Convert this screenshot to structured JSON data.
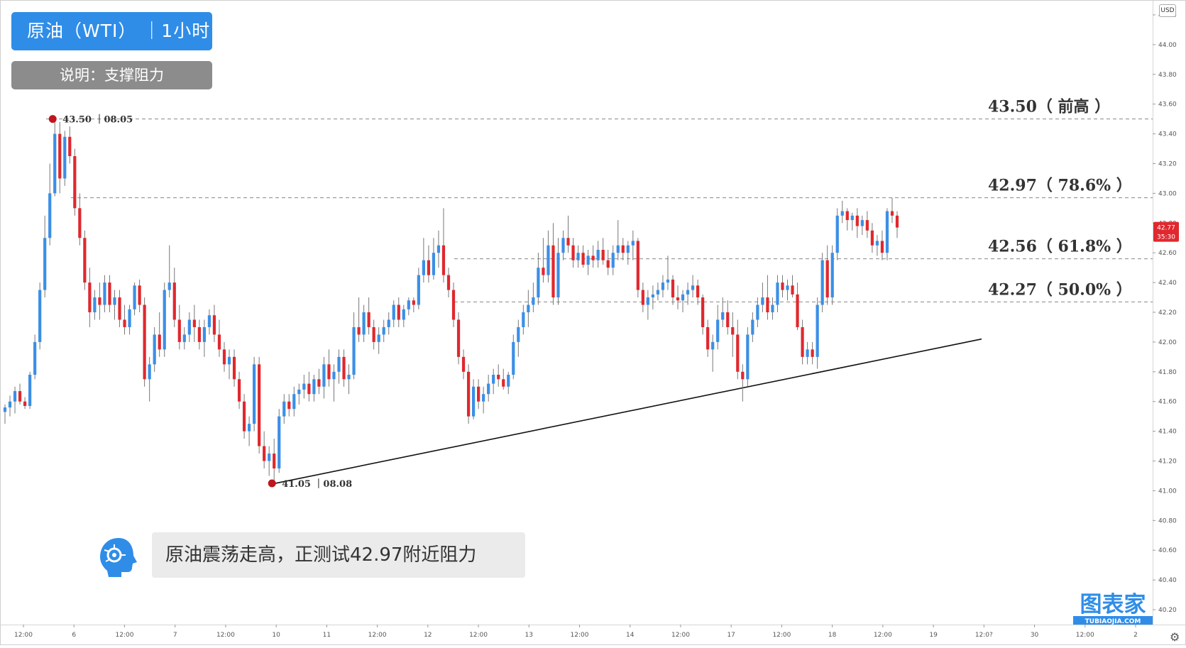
{
  "header": {
    "title": "原油（WTI）  ｜1小时",
    "note": "说明：支撑阻力"
  },
  "comment": "原油震荡走高，正测试42.97附近阻力",
  "currency": "USD",
  "brand": {
    "name": "图表家",
    "sub": "TUBIAOJIA.COM"
  },
  "price_tag": {
    "price": "42.77",
    "countdown": "35:30",
    "color": "#e0282e"
  },
  "colors": {
    "up": "#3b8fe6",
    "down": "#e0282e",
    "accent": "#2f8de8"
  },
  "chart_data": {
    "type": "candlestick",
    "ylim": [
      40.1,
      44.3
    ],
    "y_ticks": [
      "44.20",
      "44.00",
      "43.80",
      "43.60",
      "43.40",
      "43.20",
      "43.00",
      "42.80",
      "42.60",
      "42.40",
      "42.20",
      "42.00",
      "41.80",
      "41.60",
      "41.40",
      "41.20",
      "41.00",
      "40.80",
      "40.60",
      "40.40",
      "40.20"
    ],
    "x_ticks": [
      "12:00",
      "6",
      "12:00",
      "7",
      "12:00",
      "10",
      "11",
      "12:00",
      "12",
      "12:00",
      "13",
      "12:00",
      "14",
      "12:00",
      "17",
      "12:00",
      "18",
      "12:00",
      "19",
      "12:0?",
      "30",
      "12:00",
      "2"
    ],
    "levels": [
      {
        "value": 43.5,
        "label": "43.50（ 前高 ）"
      },
      {
        "value": 42.97,
        "label": "42.97（ 78.6% ）"
      },
      {
        "value": 42.56,
        "label": "42.56（ 61.8% ）"
      },
      {
        "value": 42.27,
        "label": "42.27（ 50.0% ）"
      }
    ],
    "annotations": [
      {
        "price": 43.5,
        "text": "43.50 ｜08.05"
      },
      {
        "price": 41.05,
        "text": "41.05 ｜08.08"
      }
    ],
    "trendline": {
      "from_price": 41.05,
      "to_price": 42.02
    },
    "ohlc": [
      [
        41.53,
        41.58,
        41.45,
        41.56
      ],
      [
        41.56,
        41.64,
        41.5,
        41.6
      ],
      [
        41.6,
        41.7,
        41.52,
        41.67
      ],
      [
        41.67,
        41.72,
        41.58,
        41.6
      ],
      [
        41.6,
        41.63,
        41.55,
        41.57
      ],
      [
        41.57,
        41.8,
        41.55,
        41.78
      ],
      [
        41.78,
        42.05,
        41.75,
        42.0
      ],
      [
        42.0,
        42.4,
        41.95,
        42.35
      ],
      [
        42.35,
        42.85,
        42.3,
        42.7
      ],
      [
        42.7,
        43.2,
        42.65,
        43.0
      ],
      [
        43.0,
        43.5,
        42.98,
        43.4
      ],
      [
        43.4,
        43.48,
        43.0,
        43.1
      ],
      [
        43.1,
        43.42,
        43.05,
        43.38
      ],
      [
        43.38,
        43.45,
        43.2,
        43.25
      ],
      [
        43.25,
        43.3,
        42.85,
        42.9
      ],
      [
        42.9,
        43.0,
        42.65,
        42.7
      ],
      [
        42.7,
        42.75,
        42.35,
        42.4
      ],
      [
        42.4,
        42.5,
        42.1,
        42.2
      ],
      [
        42.2,
        42.35,
        42.15,
        42.3
      ],
      [
        42.3,
        42.4,
        42.15,
        42.25
      ],
      [
        42.25,
        42.45,
        42.2,
        42.4
      ],
      [
        42.4,
        42.45,
        42.2,
        42.25
      ],
      [
        42.25,
        42.35,
        42.15,
        42.3
      ],
      [
        42.3,
        42.35,
        42.1,
        42.15
      ],
      [
        42.15,
        42.25,
        42.05,
        42.1
      ],
      [
        42.1,
        42.25,
        42.05,
        42.22
      ],
      [
        42.22,
        42.4,
        42.18,
        42.38
      ],
      [
        42.38,
        42.42,
        42.2,
        42.25
      ],
      [
        42.25,
        42.3,
        41.7,
        41.75
      ],
      [
        41.75,
        41.9,
        41.6,
        41.85
      ],
      [
        41.85,
        42.1,
        41.8,
        42.05
      ],
      [
        42.05,
        42.2,
        41.9,
        41.95
      ],
      [
        41.95,
        42.4,
        41.9,
        42.35
      ],
      [
        42.35,
        42.65,
        42.3,
        42.4
      ],
      [
        42.4,
        42.5,
        42.1,
        42.15
      ],
      [
        42.15,
        42.25,
        41.95,
        42.0
      ],
      [
        42.0,
        42.1,
        41.95,
        42.05
      ],
      [
        42.05,
        42.2,
        42.0,
        42.15
      ],
      [
        42.15,
        42.25,
        42.0,
        42.1
      ],
      [
        42.1,
        42.15,
        41.95,
        42.0
      ],
      [
        42.0,
        42.15,
        41.9,
        42.1
      ],
      [
        42.1,
        42.22,
        42.05,
        42.18
      ],
      [
        42.18,
        42.25,
        42.0,
        42.05
      ],
      [
        42.05,
        42.15,
        41.9,
        41.95
      ],
      [
        41.95,
        42.0,
        41.8,
        41.85
      ],
      [
        41.85,
        41.95,
        41.75,
        41.9
      ],
      [
        41.9,
        41.95,
        41.7,
        41.75
      ],
      [
        41.75,
        41.8,
        41.55,
        41.6
      ],
      [
        41.6,
        41.65,
        41.35,
        41.4
      ],
      [
        41.4,
        41.5,
        41.3,
        41.45
      ],
      [
        41.45,
        41.9,
        41.4,
        41.85
      ],
      [
        41.85,
        41.9,
        41.25,
        41.3
      ],
      [
        41.3,
        41.4,
        41.15,
        41.2
      ],
      [
        41.2,
        41.3,
        41.1,
        41.25
      ],
      [
        41.25,
        41.35,
        41.05,
        41.15
      ],
      [
        41.15,
        41.55,
        41.12,
        41.5
      ],
      [
        41.5,
        41.65,
        41.45,
        41.6
      ],
      [
        41.6,
        41.65,
        41.5,
        41.55
      ],
      [
        41.55,
        41.7,
        41.5,
        41.65
      ],
      [
        41.65,
        41.72,
        41.58,
        41.68
      ],
      [
        41.68,
        41.78,
        41.62,
        41.72
      ],
      [
        41.72,
        41.8,
        41.6,
        41.65
      ],
      [
        41.65,
        41.78,
        41.6,
        41.75
      ],
      [
        41.75,
        41.82,
        41.65,
        41.7
      ],
      [
        41.7,
        41.9,
        41.62,
        41.85
      ],
      [
        41.85,
        41.95,
        41.7,
        41.75
      ],
      [
        41.75,
        41.85,
        41.6,
        41.8
      ],
      [
        41.8,
        41.95,
        41.72,
        41.9
      ],
      [
        41.9,
        41.95,
        41.7,
        41.75
      ],
      [
        41.75,
        41.85,
        41.65,
        41.78
      ],
      [
        41.78,
        42.2,
        41.75,
        42.1
      ],
      [
        42.1,
        42.3,
        42.0,
        42.05
      ],
      [
        42.05,
        42.25,
        42.0,
        42.2
      ],
      [
        42.2,
        42.3,
        42.05,
        42.1
      ],
      [
        42.1,
        42.15,
        41.95,
        42.0
      ],
      [
        42.0,
        42.1,
        41.92,
        42.05
      ],
      [
        42.05,
        42.15,
        42.0,
        42.1
      ],
      [
        42.1,
        42.2,
        42.05,
        42.15
      ],
      [
        42.15,
        42.28,
        42.1,
        42.25
      ],
      [
        42.25,
        42.3,
        42.1,
        42.15
      ],
      [
        42.15,
        42.25,
        42.1,
        42.22
      ],
      [
        42.22,
        42.3,
        42.18,
        42.28
      ],
      [
        42.28,
        42.3,
        42.2,
        42.25
      ],
      [
        42.25,
        42.5,
        42.22,
        42.45
      ],
      [
        42.45,
        42.7,
        42.4,
        42.55
      ],
      [
        42.55,
        42.65,
        42.4,
        42.45
      ],
      [
        42.45,
        42.7,
        42.42,
        42.6
      ],
      [
        42.6,
        42.75,
        42.5,
        42.65
      ],
      [
        42.65,
        42.9,
        42.4,
        42.45
      ],
      [
        42.45,
        42.5,
        42.3,
        42.35
      ],
      [
        42.35,
        42.4,
        42.1,
        42.15
      ],
      [
        42.15,
        42.2,
        41.85,
        41.9
      ],
      [
        41.9,
        41.95,
        41.75,
        41.8
      ],
      [
        41.8,
        41.85,
        41.45,
        41.5
      ],
      [
        41.5,
        41.75,
        41.48,
        41.7
      ],
      [
        41.7,
        41.75,
        41.55,
        41.6
      ],
      [
        41.6,
        41.7,
        41.52,
        41.65
      ],
      [
        41.65,
        41.78,
        41.6,
        41.72
      ],
      [
        41.72,
        41.82,
        41.65,
        41.78
      ],
      [
        41.78,
        41.85,
        41.7,
        41.75
      ],
      [
        41.75,
        41.82,
        41.68,
        41.7
      ],
      [
        41.7,
        41.8,
        41.65,
        41.78
      ],
      [
        41.78,
        42.05,
        41.75,
        42.0
      ],
      [
        42.0,
        42.15,
        41.9,
        42.1
      ],
      [
        42.1,
        42.25,
        42.05,
        42.2
      ],
      [
        42.2,
        42.35,
        42.1,
        42.25
      ],
      [
        42.25,
        42.4,
        42.2,
        42.3
      ],
      [
        42.3,
        42.6,
        42.25,
        42.5
      ],
      [
        42.5,
        42.7,
        42.4,
        42.45
      ],
      [
        42.45,
        42.75,
        42.4,
        42.65
      ],
      [
        42.65,
        42.8,
        42.25,
        42.3
      ],
      [
        42.3,
        42.7,
        42.25,
        42.6
      ],
      [
        42.6,
        42.75,
        42.55,
        42.7
      ],
      [
        42.7,
        42.85,
        42.6,
        42.65
      ],
      [
        42.65,
        42.7,
        42.5,
        42.55
      ],
      [
        42.55,
        42.65,
        42.5,
        42.6
      ],
      [
        42.6,
        42.65,
        42.5,
        42.52
      ],
      [
        42.52,
        42.62,
        42.45,
        42.58
      ],
      [
        42.58,
        42.65,
        42.5,
        42.55
      ],
      [
        42.55,
        42.68,
        42.5,
        42.62
      ],
      [
        42.62,
        42.7,
        42.52,
        42.55
      ],
      [
        42.55,
        42.62,
        42.45,
        42.5
      ],
      [
        42.5,
        42.65,
        42.45,
        42.6
      ],
      [
        42.6,
        42.82,
        42.55,
        42.65
      ],
      [
        42.65,
        42.7,
        42.55,
        42.6
      ],
      [
        42.6,
        42.68,
        42.52,
        42.65
      ],
      [
        42.65,
        42.75,
        42.55,
        42.68
      ],
      [
        42.68,
        42.7,
        42.3,
        42.35
      ],
      [
        42.35,
        42.4,
        42.2,
        42.25
      ],
      [
        42.25,
        42.35,
        42.15,
        42.3
      ],
      [
        42.3,
        42.38,
        42.22,
        42.32
      ],
      [
        42.32,
        42.4,
        42.28,
        42.35
      ],
      [
        42.35,
        42.45,
        42.3,
        42.4
      ],
      [
        42.4,
        42.58,
        42.35,
        42.42
      ],
      [
        42.42,
        42.45,
        42.25,
        42.3
      ],
      [
        42.3,
        42.38,
        42.22,
        42.28
      ],
      [
        42.28,
        42.35,
        42.2,
        42.32
      ],
      [
        42.32,
        42.4,
        42.25,
        42.35
      ],
      [
        42.35,
        42.45,
        42.3,
        42.38
      ],
      [
        42.38,
        42.42,
        42.25,
        42.3
      ],
      [
        42.3,
        42.32,
        42.05,
        42.1
      ],
      [
        42.1,
        42.15,
        41.9,
        41.95
      ],
      [
        41.95,
        42.05,
        41.8,
        42.0
      ],
      [
        42.0,
        42.25,
        41.95,
        42.15
      ],
      [
        42.15,
        42.3,
        42.1,
        42.2
      ],
      [
        42.2,
        42.28,
        42.05,
        42.1
      ],
      [
        42.1,
        42.2,
        41.9,
        42.05
      ],
      [
        42.05,
        42.15,
        41.75,
        41.8
      ],
      [
        41.8,
        41.85,
        41.6,
        41.75
      ],
      [
        41.75,
        42.1,
        41.7,
        42.05
      ],
      [
        42.05,
        42.2,
        42.0,
        42.15
      ],
      [
        42.15,
        42.3,
        42.1,
        42.25
      ],
      [
        42.25,
        42.4,
        42.2,
        42.3
      ],
      [
        42.3,
        42.45,
        42.15,
        42.2
      ],
      [
        42.2,
        42.3,
        42.15,
        42.25
      ],
      [
        42.25,
        42.45,
        42.2,
        42.4
      ],
      [
        42.4,
        42.45,
        42.3,
        42.35
      ],
      [
        42.35,
        42.42,
        42.28,
        42.38
      ],
      [
        42.38,
        42.45,
        42.3,
        42.32
      ],
      [
        42.32,
        42.4,
        42.08,
        42.1
      ],
      [
        42.1,
        42.15,
        41.85,
        41.9
      ],
      [
        41.9,
        42.0,
        41.85,
        41.95
      ],
      [
        41.95,
        42.0,
        41.85,
        41.9
      ],
      [
        41.9,
        42.3,
        41.82,
        42.25
      ],
      [
        42.25,
        42.6,
        42.2,
        42.55
      ],
      [
        42.55,
        42.65,
        42.25,
        42.3
      ],
      [
        42.3,
        42.65,
        42.25,
        42.6
      ],
      [
        42.6,
        42.9,
        42.55,
        42.85
      ],
      [
        42.85,
        42.95,
        42.8,
        42.88
      ],
      [
        42.88,
        42.9,
        42.75,
        42.82
      ],
      [
        42.82,
        42.87,
        42.75,
        42.85
      ],
      [
        42.85,
        42.9,
        42.7,
        42.78
      ],
      [
        42.78,
        42.85,
        42.72,
        42.82
      ],
      [
        42.82,
        42.88,
        42.7,
        42.75
      ],
      [
        42.75,
        42.8,
        42.6,
        42.65
      ],
      [
        42.65,
        42.72,
        42.58,
        42.68
      ],
      [
        42.68,
        42.75,
        42.55,
        42.6
      ],
      [
        42.6,
        42.9,
        42.55,
        42.88
      ],
      [
        42.88,
        42.97,
        42.8,
        42.85
      ],
      [
        42.85,
        42.88,
        42.7,
        42.77
      ]
    ]
  }
}
